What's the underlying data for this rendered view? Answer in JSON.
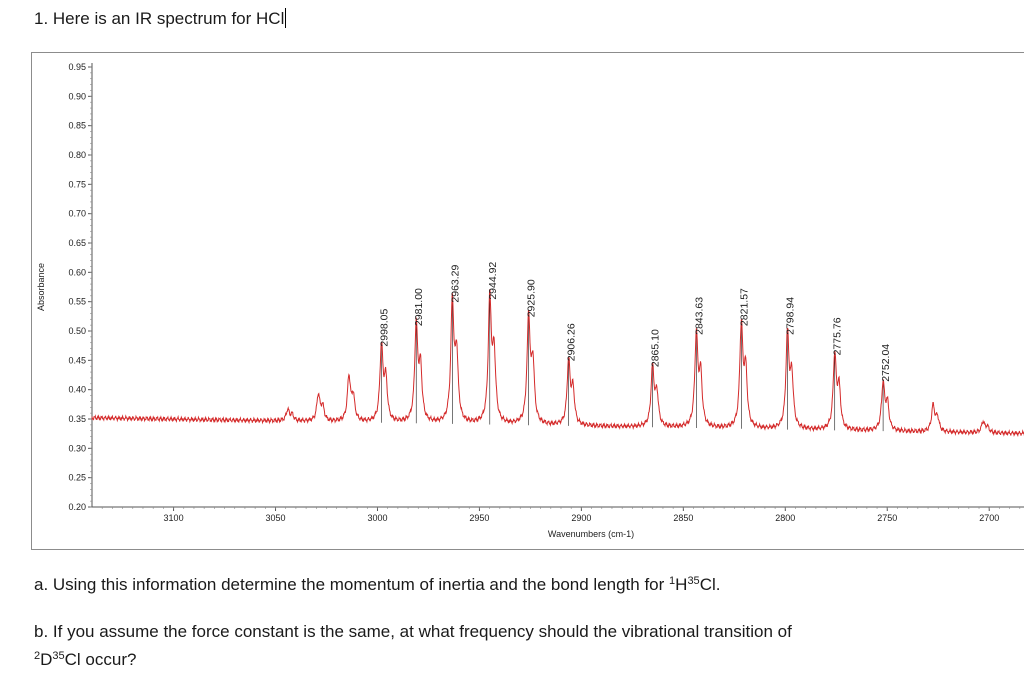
{
  "question": {
    "title": "1. Here is an IR spectrum for HCl",
    "part_a": {
      "prefix": "a. Using this information determine the momentum of inertia and the bond length for ",
      "sup1": "1",
      "mid": "H",
      "sup2": "35",
      "suffix": "Cl."
    },
    "part_b_line1": "b. If you assume the force constant is the same, at what frequency should the vibrational transition of",
    "part_b_line2": {
      "sup1": "2",
      "mid": "D",
      "sup2": "35",
      "suffix": "Cl occur?"
    }
  },
  "chart_data": {
    "type": "line",
    "xlabel": "Wavenumbers (cm-1)",
    "ylabel": "Absorbance",
    "xlim": [
      3140,
      2680
    ],
    "ylim": [
      0.2,
      0.95
    ],
    "x_ticks": [
      3100,
      3050,
      3000,
      2950,
      2900,
      2850,
      2800,
      2750,
      2700
    ],
    "y_ticks": [
      0.2,
      0.25,
      0.3,
      0.35,
      0.4,
      0.45,
      0.5,
      0.55,
      0.6,
      0.65,
      0.7,
      0.75,
      0.8,
      0.85,
      0.9,
      0.95
    ],
    "baseline": [
      [
        3140,
        0.352
      ],
      [
        2680,
        0.325
      ]
    ],
    "series": [
      {
        "color": "#d42a2a",
        "peaks": [
          {
            "x": 3044,
            "y": 0.365
          },
          {
            "x": 3029,
            "y": 0.39
          },
          {
            "x": 3014,
            "y": 0.42
          },
          {
            "x": 2998.05,
            "y": 0.47
          },
          {
            "x": 2981.0,
            "y": 0.505
          },
          {
            "x": 2963.29,
            "y": 0.545
          },
          {
            "x": 2944.92,
            "y": 0.55
          },
          {
            "x": 2925.9,
            "y": 0.52
          },
          {
            "x": 2906.26,
            "y": 0.445
          },
          {
            "x": 2865.1,
            "y": 0.435
          },
          {
            "x": 2843.63,
            "y": 0.49
          },
          {
            "x": 2821.57,
            "y": 0.505
          },
          {
            "x": 2798.94,
            "y": 0.49
          },
          {
            "x": 2775.76,
            "y": 0.455
          },
          {
            "x": 2752.04,
            "y": 0.41
          },
          {
            "x": 2727.5,
            "y": 0.372
          },
          {
            "x": 2703,
            "y": 0.345
          },
          {
            "x": 2678.5,
            "y": 0.33
          }
        ]
      }
    ],
    "peak_labels": [
      "2998.05",
      "2981.00",
      "2963.29",
      "2944.92",
      "2925.90",
      "2906.26",
      "2865.10",
      "2843.63",
      "2821.57",
      "2798.94",
      "2775.76",
      "2752.04"
    ],
    "grid": false
  }
}
